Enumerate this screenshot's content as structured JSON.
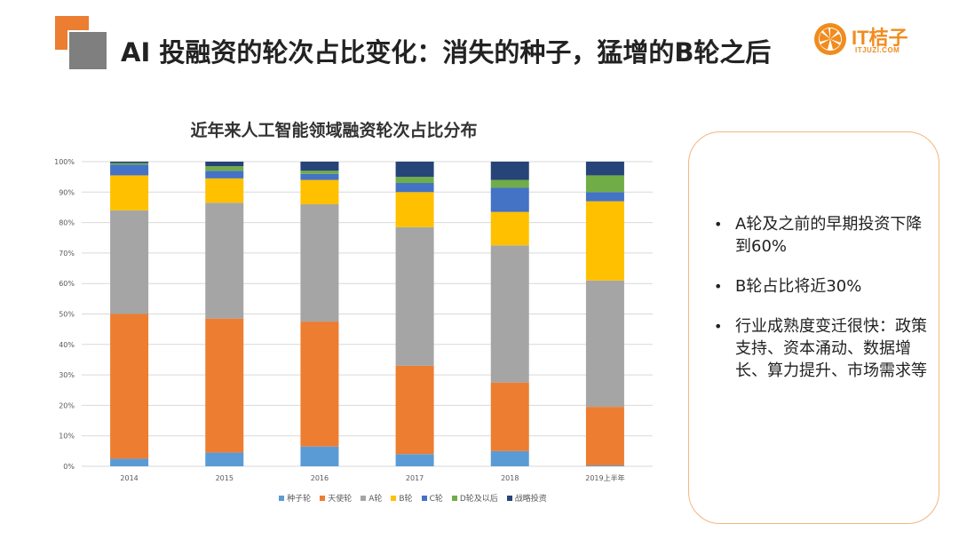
{
  "slide": {
    "title": "AI 投融资的轮次占比变化：消失的种子，猛增的B轮之后"
  },
  "logo": {
    "name": "IT桔子",
    "url_text": "ITJUZI.COM",
    "color": "#f08c1e"
  },
  "bullets": [
    "A轮及之前的早期投资下降到60%",
    "B轮占比将近30%",
    "行业成熟度变迁很快：政策支持、资本涌动、数据增长、算力提升、市场需求等"
  ],
  "chart_data": {
    "type": "bar",
    "stacked": true,
    "percent": true,
    "title": "近年来人工智能领域融资轮次占比分布",
    "xlabel": "",
    "ylabel": "",
    "ylim": [
      0,
      100
    ],
    "y_ticks": [
      "0%",
      "10%",
      "20%",
      "30%",
      "40%",
      "50%",
      "60%",
      "70%",
      "80%",
      "90%",
      "100%"
    ],
    "grid": true,
    "legend_position": "bottom",
    "categories": [
      "2014",
      "2015",
      "2016",
      "2017",
      "2018",
      "2019上半年"
    ],
    "series": [
      {
        "name": "种子轮",
        "color": "#5b9bd5",
        "values": [
          2.5,
          4.5,
          6.5,
          4,
          5,
          0.3
        ]
      },
      {
        "name": "天使轮",
        "color": "#ed7d31",
        "values": [
          47.5,
          44,
          41,
          29,
          22.5,
          19.2
        ]
      },
      {
        "name": "A轮",
        "color": "#a5a5a5",
        "values": [
          34,
          38,
          38.5,
          45.5,
          45,
          41.5
        ]
      },
      {
        "name": "B轮",
        "color": "#ffc000",
        "values": [
          11.5,
          8,
          8,
          11.5,
          11,
          26
        ]
      },
      {
        "name": "C轮",
        "color": "#4472c4",
        "values": [
          3.5,
          2.5,
          2,
          3,
          8,
          3
        ]
      },
      {
        "name": "D轮及以后",
        "color": "#70ad47",
        "values": [
          0.5,
          1.5,
          1,
          2,
          2.5,
          5.5
        ]
      },
      {
        "name": "战略投资",
        "color": "#264478",
        "values": [
          0.5,
          1.5,
          3,
          5,
          6,
          4.5
        ]
      }
    ]
  }
}
